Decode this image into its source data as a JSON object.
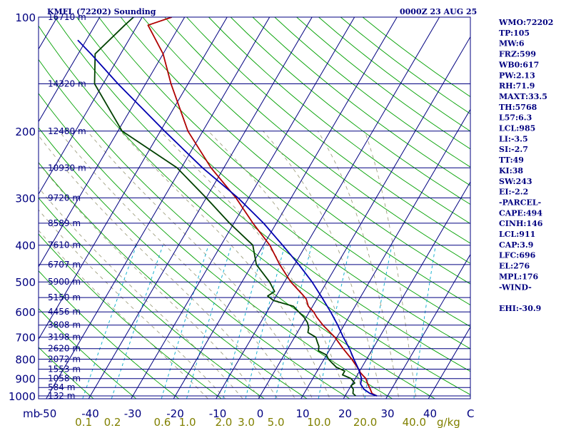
{
  "header": {
    "station": "KMFL (72202) Sounding",
    "time": "0000Z 23 AUG 25"
  },
  "indices": [
    "WMO:72202",
    "TP:105",
    "MW:6",
    "FRZ:599",
    "WB0:617",
    "PW:2.13",
    "RH:71.9",
    "MAXT:33.5",
    "TH:5768",
    "L57:6.3",
    "LCL:985",
    "LI:-3.5",
    "SI:-2.7",
    "TT:49",
    "KI:38",
    "SW:243",
    "EI:-2.2",
    "-PARCEL-",
    "CAPE:494",
    "CINH:146",
    "LCL:911",
    "CAP:3.9",
    "LFC:696",
    "EL:276",
    "MPL:176",
    "-WIND-",
    "",
    "EHI:-30.9"
  ],
  "colors": {
    "frame": "#000080",
    "isobar": "#000080",
    "isotherm": "#000080",
    "dry_adiabat": "#00a000",
    "moist_adiabat": "#a0a080",
    "mixing_ratio": "#00aacc",
    "temperature": "#b00000",
    "dewpoint": "#004000",
    "parcel": "#0000b0",
    "mixing_label": "#808000"
  },
  "chart_data": {
    "type": "line",
    "title": "KMFL (72202) Sounding",
    "subtitle": "0000Z 23 AUG 25",
    "xlabel": "",
    "ylabel": "mb",
    "temperature_axis": {
      "label_unit": "",
      "range": [
        -50,
        50
      ],
      "ticks": [
        -50,
        -40,
        -30,
        -20,
        -10,
        0,
        10,
        20,
        30,
        40
      ],
      "end_label": "C"
    },
    "pressure_axis": {
      "scale": "log",
      "range": [
        1000,
        100
      ],
      "labeled_ticks": [
        100,
        200,
        300,
        400,
        500,
        600,
        700,
        800,
        900,
        1000
      ],
      "mb_label": "mb"
    },
    "isobar_levels": [
      {
        "p": 100,
        "h": "16710 m"
      },
      {
        "p": 150,
        "h": "14320 m"
      },
      {
        "p": 200,
        "h": "12480 m"
      },
      {
        "p": 250,
        "h": "10930 m"
      },
      {
        "p": 300,
        "h": "9720 m"
      },
      {
        "p": 350,
        "h": "8589 m"
      },
      {
        "p": 400,
        "h": "7610 m"
      },
      {
        "p": 450,
        "h": "6707 m"
      },
      {
        "p": 500,
        "h": "5900 m"
      },
      {
        "p": 550,
        "h": "5150 m"
      },
      {
        "p": 600,
        "h": "4456 m"
      },
      {
        "p": 650,
        "h": "3808 m"
      },
      {
        "p": 700,
        "h": "3198 m"
      },
      {
        "p": 750,
        "h": "2620 m"
      },
      {
        "p": 800,
        "h": "2072 m"
      },
      {
        "p": 850,
        "h": "1553 m"
      },
      {
        "p": 900,
        "h": "1058 m"
      },
      {
        "p": 950,
        "h": "584 m"
      },
      {
        "p": 1000,
        "h": "132 m"
      }
    ],
    "mixing_ratio_axis": {
      "unit": "g/kg",
      "labels": [
        "0.1",
        "0.2",
        "0.6",
        "1.0",
        "2.0",
        "3.0",
        "5.0",
        "10.0",
        "20.0",
        "40.0"
      ],
      "values": [
        0.1,
        0.2,
        0.6,
        1.0,
        2.0,
        3.0,
        5.0,
        10.0,
        20.0,
        40.0
      ]
    },
    "series": [
      {
        "key": "temperature",
        "points": [
          {
            "p": 1000,
            "t": 27.5
          },
          {
            "p": 985,
            "t": 26.0
          },
          {
            "p": 960,
            "t": 25.0
          },
          {
            "p": 925,
            "t": 23.5
          },
          {
            "p": 900,
            "t": 22.5
          },
          {
            "p": 870,
            "t": 20.5
          },
          {
            "p": 850,
            "t": 19.5
          },
          {
            "p": 800,
            "t": 16.5
          },
          {
            "p": 750,
            "t": 13.0
          },
          {
            "p": 700,
            "t": 9.5
          },
          {
            "p": 650,
            "t": 5.0
          },
          {
            "p": 620,
            "t": 2.5
          },
          {
            "p": 600,
            "t": 1.0
          },
          {
            "p": 580,
            "t": -1.0
          },
          {
            "p": 555,
            "t": -2.5
          },
          {
            "p": 540,
            "t": -4.0
          },
          {
            "p": 500,
            "t": -8.5
          },
          {
            "p": 450,
            "t": -13.5
          },
          {
            "p": 400,
            "t": -18.5
          },
          {
            "p": 350,
            "t": -25.5
          },
          {
            "p": 300,
            "t": -33.0
          },
          {
            "p": 250,
            "t": -43.0
          },
          {
            "p": 200,
            "t": -53.5
          },
          {
            "p": 150,
            "t": -64.0
          },
          {
            "p": 125,
            "t": -70.0
          },
          {
            "p": 105,
            "t": -77.5
          },
          {
            "p": 100,
            "t": -73.0
          }
        ]
      },
      {
        "key": "dewpoint",
        "points": [
          {
            "p": 1000,
            "t": 22.5
          },
          {
            "p": 985,
            "t": 21.5
          },
          {
            "p": 960,
            "t": 21.0
          },
          {
            "p": 940,
            "t": 20.0
          },
          {
            "p": 925,
            "t": 20.5
          },
          {
            "p": 900,
            "t": 19.0
          },
          {
            "p": 880,
            "t": 16.5
          },
          {
            "p": 860,
            "t": 16.5
          },
          {
            "p": 840,
            "t": 14.0
          },
          {
            "p": 820,
            "t": 12.5
          },
          {
            "p": 800,
            "t": 11.0
          },
          {
            "p": 780,
            "t": 10.0
          },
          {
            "p": 760,
            "t": 7.5
          },
          {
            "p": 740,
            "t": 7.0
          },
          {
            "p": 720,
            "t": 6.0
          },
          {
            "p": 700,
            "t": 5.0
          },
          {
            "p": 680,
            "t": 2.5
          },
          {
            "p": 660,
            "t": 2.0
          },
          {
            "p": 640,
            "t": 1.0
          },
          {
            "p": 620,
            "t": -0.5
          },
          {
            "p": 600,
            "t": -2.5
          },
          {
            "p": 580,
            "t": -4.5
          },
          {
            "p": 560,
            "t": -10.0
          },
          {
            "p": 545,
            "t": -12.0
          },
          {
            "p": 530,
            "t": -11.0
          },
          {
            "p": 500,
            "t": -13.5
          },
          {
            "p": 450,
            "t": -19.0
          },
          {
            "p": 400,
            "t": -22.5
          },
          {
            "p": 350,
            "t": -31.0
          },
          {
            "p": 300,
            "t": -40.0
          },
          {
            "p": 250,
            "t": -51.0
          },
          {
            "p": 200,
            "t": -69.0
          },
          {
            "p": 150,
            "t": -82.0
          },
          {
            "p": 125,
            "t": -86.0
          },
          {
            "p": 105,
            "t": -83.0
          },
          {
            "p": 100,
            "t": -82.0
          }
        ]
      },
      {
        "key": "parcel",
        "points": [
          {
            "p": 1000,
            "t": 27.5
          },
          {
            "p": 985,
            "t": 25.5
          },
          {
            "p": 960,
            "t": 23.5
          },
          {
            "p": 930,
            "t": 22.0
          },
          {
            "p": 900,
            "t": 21.5
          },
          {
            "p": 850,
            "t": 19.5
          },
          {
            "p": 800,
            "t": 17.0
          },
          {
            "p": 750,
            "t": 14.5
          },
          {
            "p": 700,
            "t": 11.5
          },
          {
            "p": 650,
            "t": 8.5
          },
          {
            "p": 600,
            "t": 5.0
          },
          {
            "p": 550,
            "t": 1.0
          },
          {
            "p": 500,
            "t": -3.5
          },
          {
            "p": 450,
            "t": -9.0
          },
          {
            "p": 400,
            "t": -15.5
          },
          {
            "p": 350,
            "t": -23.0
          },
          {
            "p": 300,
            "t": -32.5
          },
          {
            "p": 250,
            "t": -45.0
          },
          {
            "p": 200,
            "t": -59.0
          },
          {
            "p": 150,
            "t": -76.5
          },
          {
            "p": 125,
            "t": -87.0
          },
          {
            "p": 115,
            "t": -92.0
          }
        ]
      }
    ],
    "grid": true,
    "legend": "none"
  }
}
